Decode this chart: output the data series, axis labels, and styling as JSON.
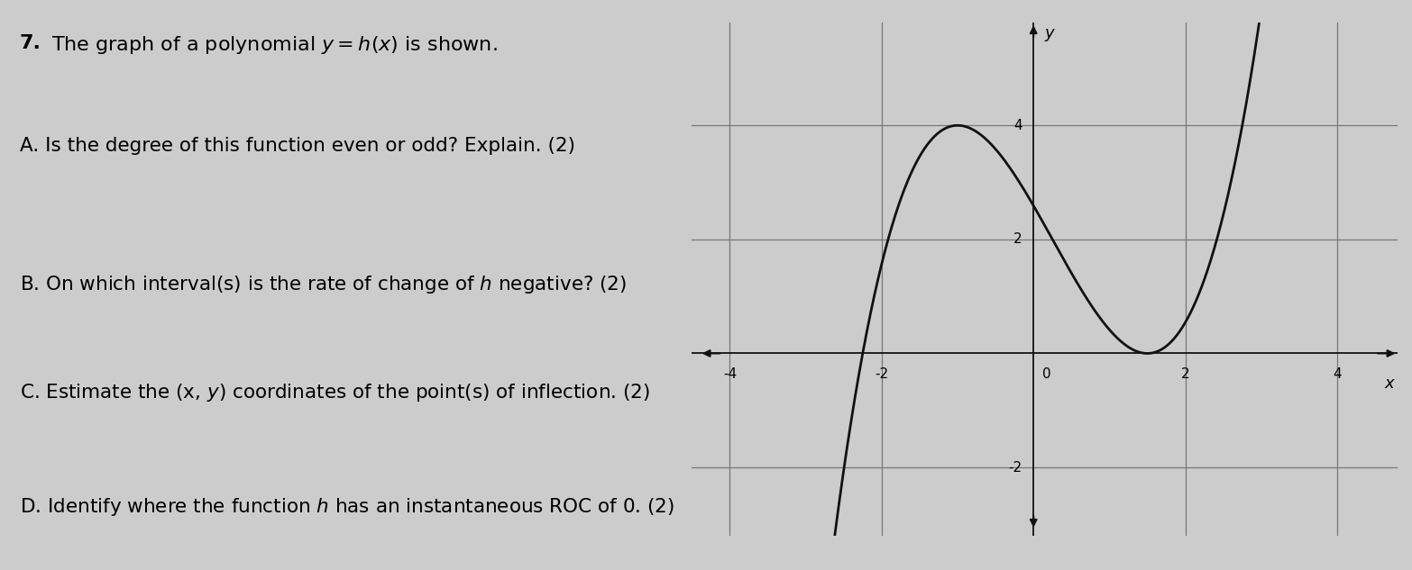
{
  "background_color": "#cccccc",
  "text_color": "#000000",
  "graph_xlim": [
    -4.5,
    4.8
  ],
  "graph_ylim": [
    -3.2,
    5.8
  ],
  "graph_xticks": [
    -4,
    -2,
    2,
    4
  ],
  "graph_yticks": [
    -2,
    2,
    4
  ],
  "graph_xlabel": "x",
  "graph_ylabel": "y",
  "curve_color": "#111111",
  "curve_linewidth": 2.0,
  "axis_color": "#111111",
  "grid_color": "#777777",
  "grid_linewidth": 0.9,
  "font_size_title": 16,
  "font_size_questions": 15.5
}
